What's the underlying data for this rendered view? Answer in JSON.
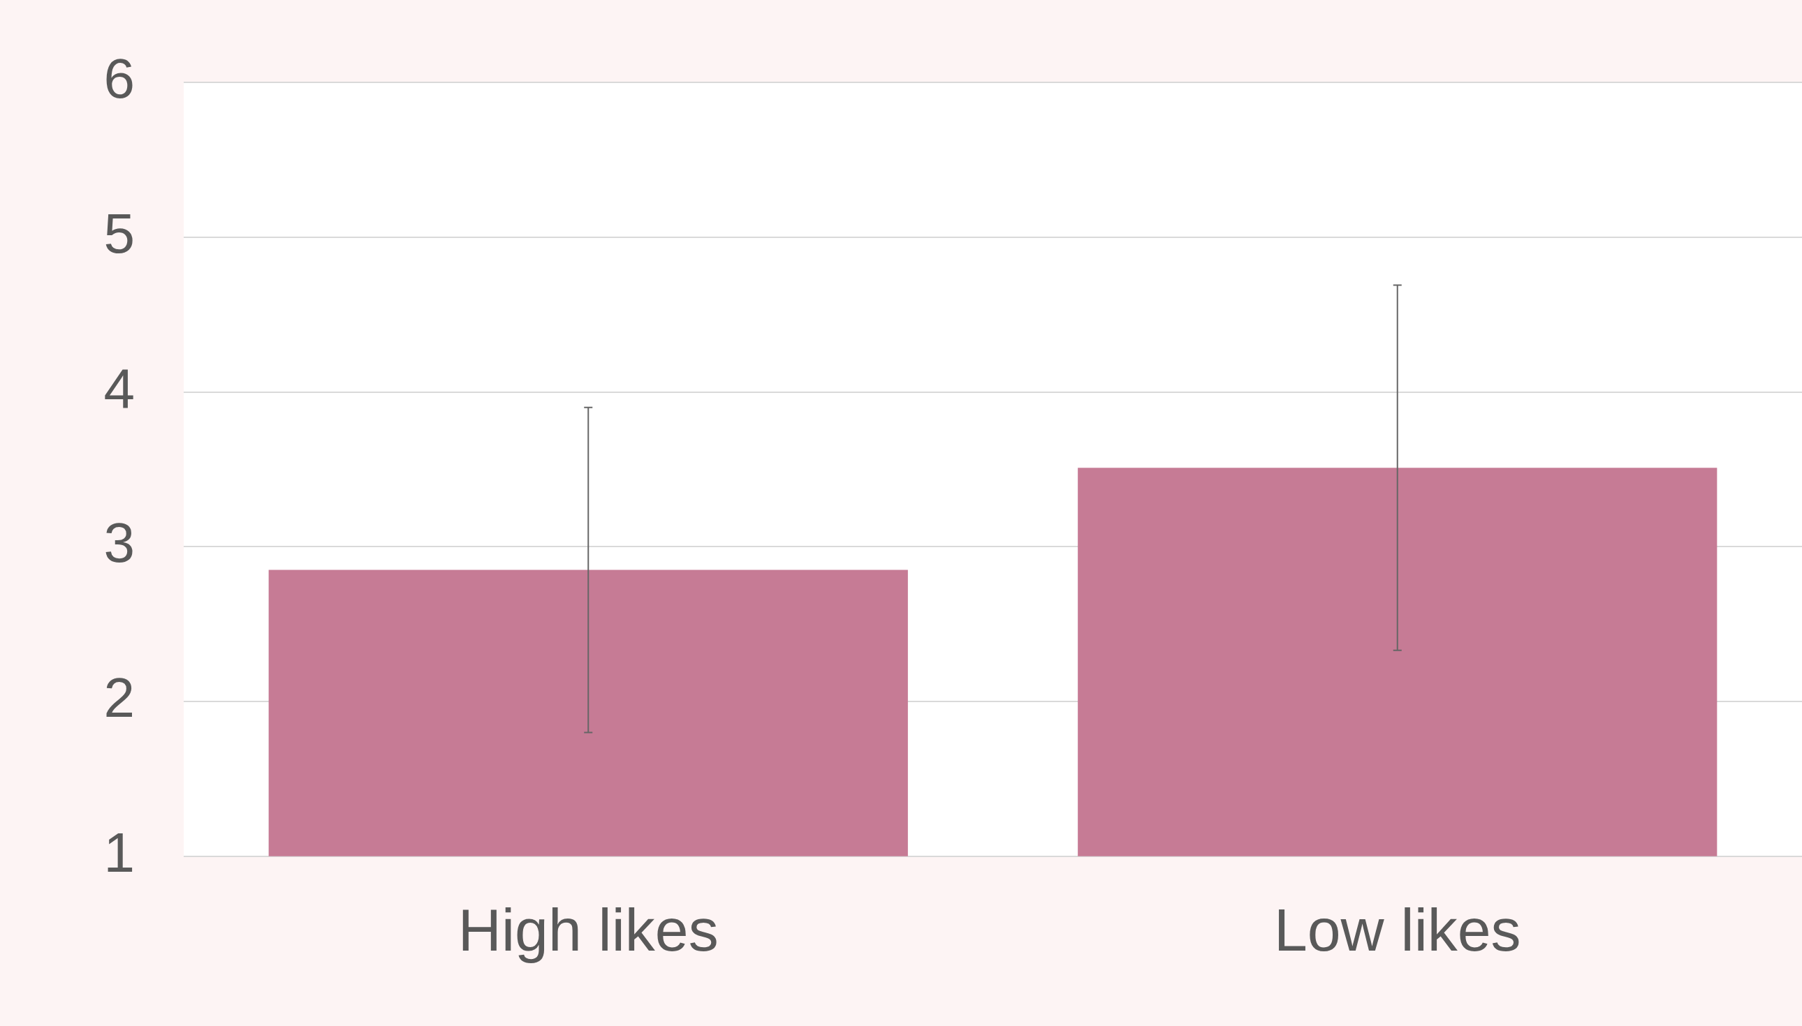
{
  "chart_data": {
    "type": "bar",
    "categories": [
      "High likes",
      "Low likes"
    ],
    "values": [
      2.85,
      3.51
    ],
    "errors": [
      1.05,
      1.18
    ],
    "color": "#c67b95",
    "ylim": [
      1,
      6
    ],
    "yticks": [
      1,
      2,
      3,
      4,
      5,
      6
    ],
    "grid": "y",
    "legend": false
  }
}
